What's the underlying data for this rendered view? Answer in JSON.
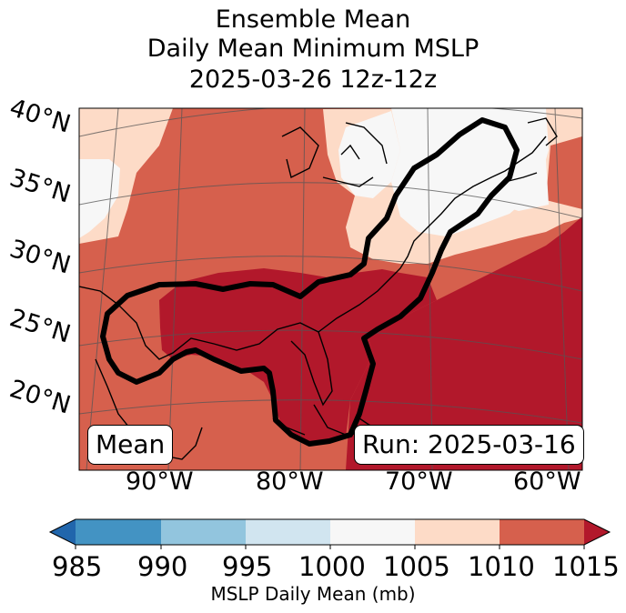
{
  "title": {
    "line1": "Ensemble Mean",
    "line2": "Daily Mean Minimum MSLP",
    "line3": "2025-03-26 12z-12z"
  },
  "axes": {
    "lat_labels": [
      "40°N",
      "35°N",
      "30°N",
      "25°N",
      "20°N"
    ],
    "lon_labels": [
      "90°W",
      "80°W",
      "70°W",
      "60°W"
    ]
  },
  "map": {
    "left_box": "Mean",
    "right_box": "Run: 2025-03-16",
    "contour_color": "#000000",
    "region_fields": [
      {
        "name": "far-north-white",
        "level": 1000
      },
      {
        "name": "great-lakes-white",
        "level": 1000
      },
      {
        "name": "northeast-white",
        "level": 1000
      },
      {
        "name": "mid-atlantic-light",
        "level": 1005
      },
      {
        "name": "central-us-red",
        "level": 1010
      },
      {
        "name": "gulf-dark-red",
        "level": 1015
      },
      {
        "name": "atlantic-dark-red",
        "level": 1015
      }
    ]
  },
  "colorbar": {
    "label": "MSLP Daily Mean (mb)",
    "ticks": [
      "985",
      "990",
      "995",
      "1000",
      "1005",
      "1010",
      "1015"
    ],
    "segments": [
      {
        "range": "under-985",
        "color": "#2166ac"
      },
      {
        "range": "985-990",
        "color": "#4393c3"
      },
      {
        "range": "990-995",
        "color": "#92c5de"
      },
      {
        "range": "995-1000",
        "color": "#d1e5f0"
      },
      {
        "range": "1000-1005",
        "color": "#f7f7f7"
      },
      {
        "range": "1005-1010",
        "color": "#fddbc7"
      },
      {
        "range": "1010-1015",
        "color": "#d6604d"
      },
      {
        "range": "over-1015",
        "color": "#b2182b"
      }
    ]
  }
}
